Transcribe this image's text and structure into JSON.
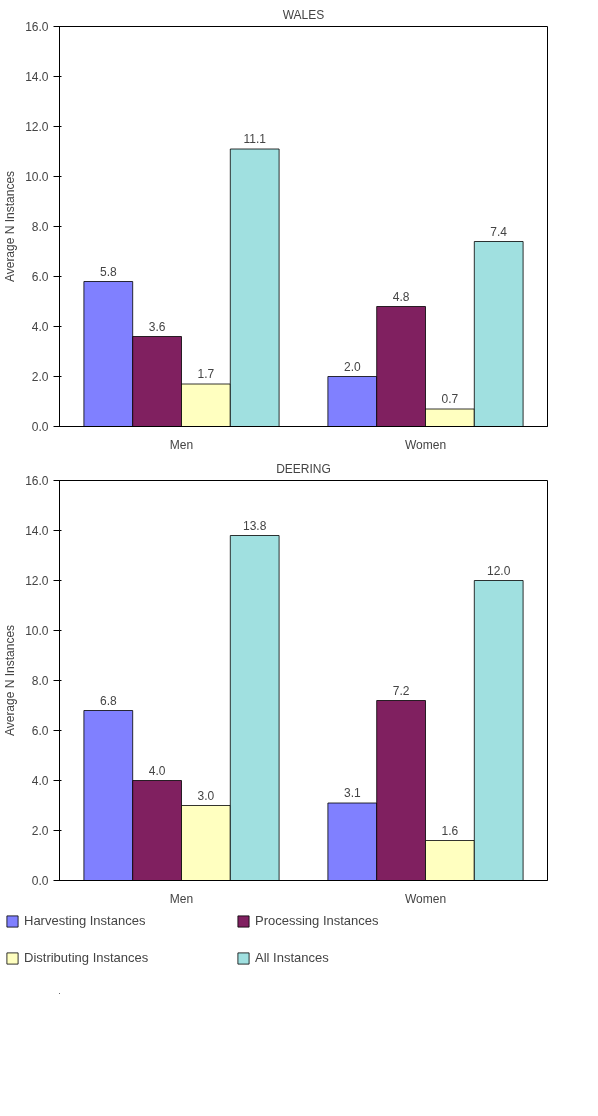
{
  "chart_data": [
    {
      "type": "bar",
      "title": "WALES",
      "ylabel": "Average N Instances",
      "categories": [
        "Men",
        "Women"
      ],
      "ylim": [
        0,
        16
      ],
      "yticks": [
        {
          "value": 0,
          "label": "0.0"
        },
        {
          "value": 2,
          "label": "2.0"
        },
        {
          "value": 4,
          "label": "4.0"
        },
        {
          "value": 6,
          "label": "6.0"
        },
        {
          "value": 8,
          "label": "8.0"
        },
        {
          "value": 10,
          "label": "10.0"
        },
        {
          "value": 12,
          "label": "12.0"
        },
        {
          "value": 14,
          "label": "14.0"
        },
        {
          "value": 16,
          "label": "16.0"
        }
      ],
      "grid": false,
      "legend": false,
      "series": [
        {
          "color": "#8080ff",
          "values": [
            5.8,
            2.0
          ],
          "value_labels": [
            "5.8",
            "2.0"
          ]
        },
        {
          "color": "#802060",
          "values": [
            3.6,
            4.8
          ],
          "value_labels": [
            "3.6",
            "4.8"
          ]
        },
        {
          "color": "#ffffc0",
          "values": [
            1.7,
            0.7
          ],
          "value_labels": [
            "1.7",
            "0.7"
          ]
        },
        {
          "color": "#a0e0e0",
          "values": [
            11.1,
            7.4
          ],
          "value_labels": [
            "11.1",
            "7.4"
          ]
        }
      ]
    },
    {
      "type": "bar",
      "title": "DEERING",
      "ylabel": "Average N Instances",
      "categories": [
        "Men",
        "Women"
      ],
      "ylim": [
        0,
        16
      ],
      "yticks": [
        {
          "value": 0,
          "label": "0.0"
        },
        {
          "value": 2,
          "label": "2.0"
        },
        {
          "value": 4,
          "label": "4.0"
        },
        {
          "value": 6,
          "label": "6.0"
        },
        {
          "value": 8,
          "label": "8.0"
        },
        {
          "value": 10,
          "label": "10.0"
        },
        {
          "value": 12,
          "label": "12.0"
        },
        {
          "value": 14,
          "label": "14.0"
        },
        {
          "value": 16,
          "label": "16.0"
        }
      ],
      "grid": false,
      "legend": "bottom",
      "series": [
        {
          "name": "Harvesting Instances",
          "color": "#8080ff",
          "values": [
            6.8,
            3.1
          ],
          "value_labels": [
            "6.8",
            "3.1"
          ]
        },
        {
          "name": "Processing Instances",
          "color": "#802060",
          "values": [
            4.0,
            7.2
          ],
          "value_labels": [
            "4.0",
            "7.2"
          ]
        },
        {
          "name": "Distributing Instances",
          "color": "#ffffc0",
          "values": [
            3.0,
            1.6
          ],
          "value_labels": [
            "3.0",
            "1.6"
          ]
        },
        {
          "name": "All Instances",
          "color": "#a0e0e0",
          "values": [
            13.8,
            12.0
          ],
          "value_labels": [
            "13.8",
            "12.0"
          ]
        }
      ]
    }
  ]
}
